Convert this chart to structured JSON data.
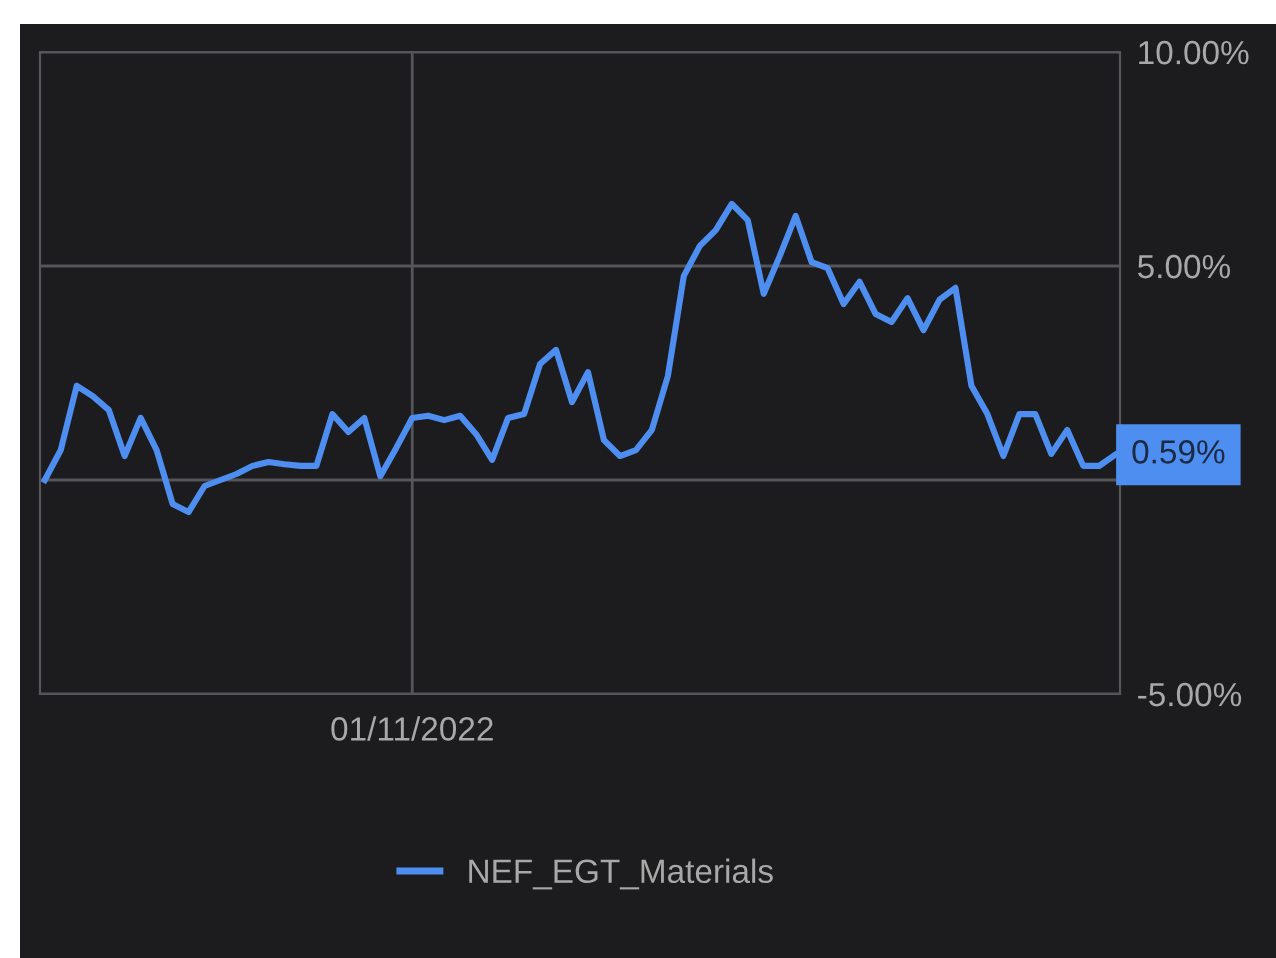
{
  "chart_data": {
    "type": "line",
    "categories": [
      null,
      null,
      null,
      null,
      null,
      null,
      null,
      null,
      null,
      null,
      null,
      null,
      null,
      null,
      null,
      null,
      null,
      null,
      null,
      null,
      null,
      null,
      null,
      "01/11/2022",
      null,
      null,
      null,
      null,
      null,
      null,
      null,
      null,
      null,
      null,
      null,
      null,
      null,
      null,
      null,
      null,
      null,
      null,
      null,
      null,
      null,
      null,
      null,
      null,
      null,
      null,
      null,
      null,
      null,
      null,
      null,
      null,
      null,
      null,
      null,
      null,
      null,
      null,
      null,
      null,
      null,
      null,
      null,
      null
    ],
    "series": [
      {
        "name": "NEF_EGT_Materials",
        "color": "#4d8ef0",
        "values": [
          0,
          0.7,
          2.2,
          1.96,
          1.64,
          0.56,
          1.45,
          0.7,
          -0.56,
          -0.75,
          -0.14,
          0,
          0.14,
          0.33,
          0.42,
          0.37,
          0.33,
          0.33,
          1.54,
          1.12,
          1.45,
          0.09,
          0.75,
          1.45,
          1.5,
          1.4,
          1.5,
          1.07,
          0.47,
          1.45,
          1.54,
          2.71,
          3.04,
          1.82,
          2.52,
          0.93,
          0.56,
          0.7,
          1.17,
          2.43,
          4.77,
          5.47,
          5.84,
          6.45,
          6.07,
          4.35,
          5.23,
          6.17,
          5.09,
          4.95,
          4.11,
          4.63,
          3.88,
          3.69,
          4.25,
          3.5,
          4.21,
          4.49,
          2.2,
          1.54,
          0.56,
          1.54,
          1.54,
          0.61,
          1.17,
          0.33,
          0.33,
          0.59
        ]
      }
    ],
    "ylim": [
      -5,
      10
    ],
    "yticks": [
      {
        "value": 10,
        "label": "10.00%"
      },
      {
        "value": 5,
        "label": "5.00%"
      },
      {
        "value": 0,
        "label": null
      },
      {
        "value": -5,
        "label": "-5.00%"
      }
    ],
    "annotations": [
      "0.59%"
    ],
    "grid": true,
    "legend": "bottom",
    "marker": "none",
    "line_style": "solid"
  }
}
